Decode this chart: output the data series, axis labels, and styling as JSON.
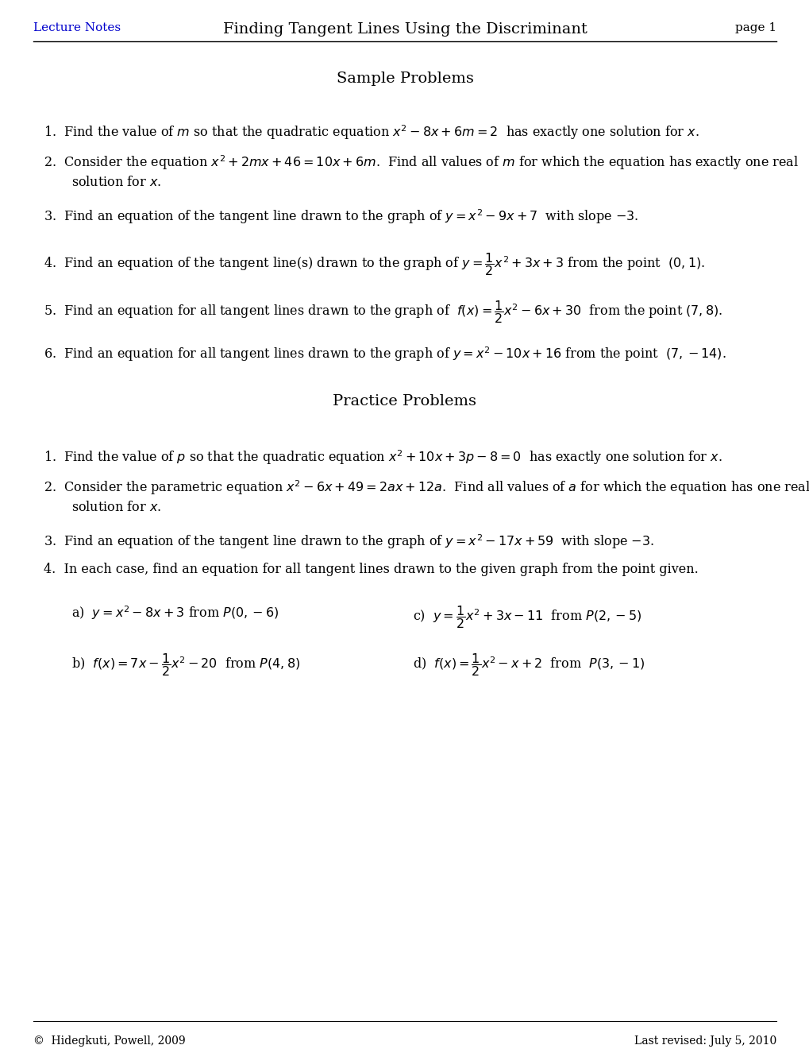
{
  "title": "Finding Tangent Lines Using the Discriminant",
  "header_left": "Lecture Notes",
  "header_right": "page 1",
  "footer_left": "©  Hidegkuti, Powell, 2009",
  "footer_right": "Last revised: July 5, 2010",
  "sample_title": "Sample Problems",
  "practice_title": "Practice Problems",
  "background_color": "#ffffff",
  "header_color": "#0000cc",
  "text_color": "#000000",
  "fig_width": 10.2,
  "fig_height": 13.2,
  "dpi": 100
}
